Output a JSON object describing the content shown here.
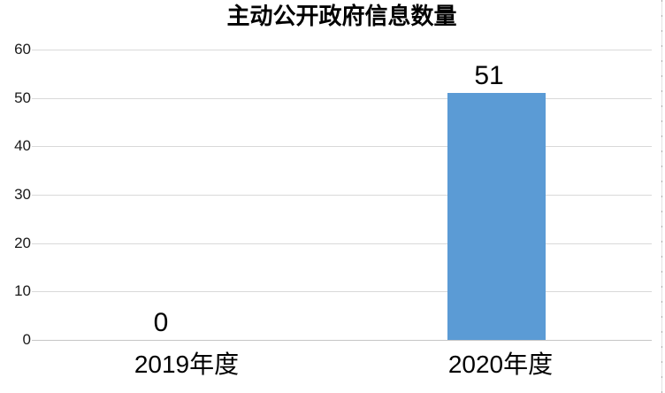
{
  "chart_data": {
    "type": "bar",
    "title": "主动公开政府信息数量",
    "categories": [
      "2019年度",
      "2020年度"
    ],
    "values": [
      0,
      51
    ],
    "data_labels": [
      "0",
      "51"
    ],
    "series": [
      {
        "name": "主动公开政府信息数量",
        "values": [
          0,
          51
        ]
      }
    ],
    "xlabel": "",
    "ylabel": "",
    "ylim": [
      0,
      60
    ],
    "yticks": [
      "0",
      "10",
      "20",
      "30",
      "40",
      "50",
      "60"
    ],
    "grid": true,
    "legend_position": "none",
    "bar_color": "#5B9BD5",
    "gridline_color": "#D9D9D9",
    "axis_line_color": "#C6C6C6",
    "background_color": "#FFFFFF",
    "text_color": "#000000"
  }
}
